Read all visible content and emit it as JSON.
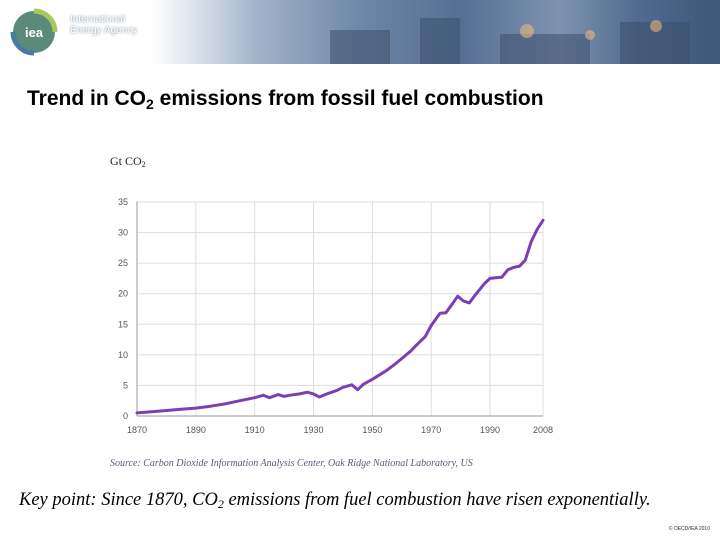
{
  "header": {
    "org_line1": "International",
    "org_line2": "Energy Agency",
    "logo_text": "iea"
  },
  "slide": {
    "title_prefix": "Trend in CO",
    "title_sub": "2",
    "title_suffix": " emissions from fossil fuel combustion",
    "y_unit_prefix": "Gt CO",
    "y_unit_sub": "2",
    "source": "Source: Carbon Dioxide Information Analysis Center, Oak Ridge National Laboratory, US",
    "keypoint_prefix": "Key point: Since 1870, CO",
    "keypoint_sub": "2",
    "keypoint_suffix": " emissions from fuel combustion have risen exponentially.",
    "copyright": "© OECD/IEA 2010"
  },
  "colors": {
    "line": "#7b3fb5",
    "grid": "#dddddd",
    "axis": "#999999"
  },
  "chart_data": {
    "type": "line",
    "title": "Trend in CO2 emissions from fossil fuel combustion",
    "xlabel": "",
    "ylabel": "Gt CO2",
    "xlim": [
      1870,
      2008
    ],
    "ylim": [
      0,
      35
    ],
    "x_ticks": [
      1870,
      1890,
      1910,
      1930,
      1950,
      1970,
      1990,
      2008
    ],
    "y_ticks": [
      0,
      5,
      10,
      15,
      20,
      25,
      30,
      35
    ],
    "grid": true,
    "series": [
      {
        "name": "CO2 emissions",
        "x": [
          1870,
          1875,
          1880,
          1885,
          1890,
          1895,
          1900,
          1905,
          1910,
          1913,
          1915,
          1918,
          1920,
          1922,
          1925,
          1928,
          1930,
          1932,
          1935,
          1938,
          1940,
          1943,
          1945,
          1947,
          1950,
          1953,
          1955,
          1958,
          1960,
          1963,
          1965,
          1968,
          1970,
          1973,
          1975,
          1977,
          1979,
          1981,
          1983,
          1985,
          1988,
          1990,
          1992,
          1994,
          1996,
          1998,
          2000,
          2002,
          2004,
          2006,
          2008
        ],
        "values": [
          0.5,
          0.7,
          0.9,
          1.1,
          1.3,
          1.6,
          2.0,
          2.5,
          3.0,
          3.4,
          3.0,
          3.5,
          3.2,
          3.4,
          3.6,
          3.9,
          3.6,
          3.1,
          3.7,
          4.2,
          4.7,
          5.1,
          4.3,
          5.2,
          6.0,
          6.9,
          7.5,
          8.6,
          9.4,
          10.6,
          11.6,
          13.0,
          14.8,
          16.8,
          16.9,
          18.2,
          19.6,
          18.8,
          18.5,
          19.8,
          21.6,
          22.5,
          22.6,
          22.7,
          23.9,
          24.3,
          24.5,
          25.5,
          28.5,
          30.5,
          32.0
        ]
      }
    ]
  }
}
